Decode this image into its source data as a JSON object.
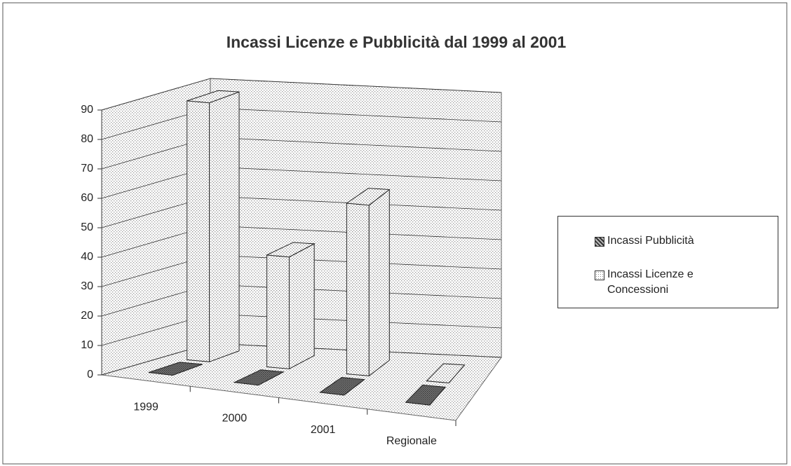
{
  "chart_data": {
    "type": "bar3d",
    "title": "Incassi Licenze e Pubblicità dal 1999 al 2001",
    "categories": [
      "1999",
      "2000",
      "2001",
      "Regionale"
    ],
    "series": [
      {
        "name": "Incassi Pubblicità",
        "color": "#333333",
        "values": [
          0,
          0,
          0,
          0
        ]
      },
      {
        "name": "Incassi Licenze e Concessioni",
        "color": "#8a8a8a",
        "values": [
          88,
          38,
          58,
          0
        ]
      }
    ],
    "ylim": [
      0,
      90
    ],
    "yticks": [
      0,
      10,
      20,
      30,
      40,
      50,
      60,
      70,
      80,
      90
    ],
    "grid": true
  }
}
